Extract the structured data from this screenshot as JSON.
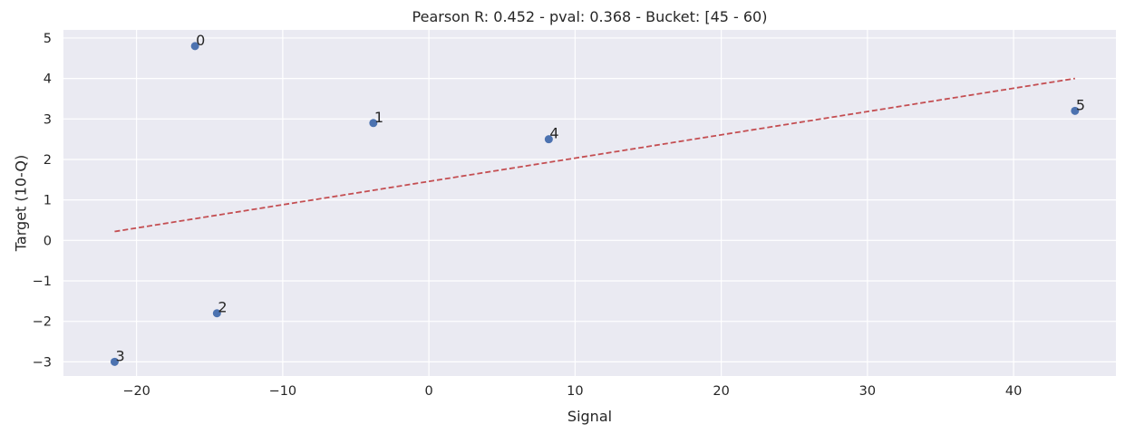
{
  "colors": {
    "plot_background": "#eaeaf2",
    "grid": "#ffffff",
    "points": "#4c72b0",
    "fit_line": "#c44e52",
    "text": "#262626"
  },
  "chart_data": {
    "type": "scatter",
    "title": "Pearson R: 0.452 - pval: 0.368 - Bucket: [45 - 60)",
    "xlabel": "Signal",
    "ylabel": "Target (10-Q)",
    "xlim": [
      -25,
      47
    ],
    "ylim": [
      -3.35,
      5.2
    ],
    "grid": true,
    "x_ticks": [
      -20,
      -10,
      0,
      10,
      20,
      30,
      40
    ],
    "x_tick_labels": [
      "−20",
      "−10",
      "0",
      "10",
      "20",
      "30",
      "40"
    ],
    "y_ticks": [
      -3,
      -2,
      -1,
      0,
      1,
      2,
      3,
      4,
      5
    ],
    "y_tick_labels": [
      "−3",
      "−2",
      "−1",
      "0",
      "1",
      "2",
      "3",
      "4",
      "5"
    ],
    "points": [
      {
        "label": "0",
        "x": -16.0,
        "y": 4.8
      },
      {
        "label": "1",
        "x": -3.8,
        "y": 2.9
      },
      {
        "label": "2",
        "x": -14.5,
        "y": -1.8
      },
      {
        "label": "3",
        "x": -21.5,
        "y": -3.0
      },
      {
        "label": "4",
        "x": 8.2,
        "y": 2.5
      },
      {
        "label": "5",
        "x": 44.2,
        "y": 3.2
      }
    ],
    "fit_line": {
      "style": "dashed",
      "x": [
        -21.5,
        44.2
      ],
      "y": [
        0.22,
        4.0
      ]
    }
  }
}
